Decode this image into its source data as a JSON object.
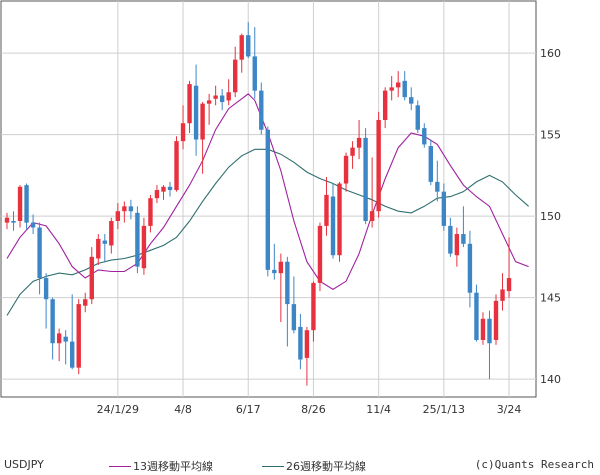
{
  "chart_data": {
    "type": "candlestick",
    "x_tick_labels": [
      "24/1/29",
      "4/8",
      "6/17",
      "8/26",
      "11/4",
      "25/1/13",
      "3/24"
    ],
    "x_tick_indices": [
      17,
      27,
      37,
      47,
      57,
      67,
      77
    ],
    "y_ticks": [
      140,
      145,
      150,
      155,
      160
    ],
    "ylim": [
      138.9,
      163.2
    ],
    "grid": true,
    "up_color": "#e8313e",
    "down_color": "#3d86c6",
    "ma13_color": "#a020a0",
    "ma26_color": "#2f6f6f",
    "ohlc": [
      [
        149.6,
        150.2,
        149.2,
        149.9
      ],
      [
        149.7,
        150.3,
        149.1,
        149.6
      ],
      [
        149.7,
        151.9,
        149.3,
        151.8
      ],
      [
        151.9,
        152.0,
        149.2,
        149.6
      ],
      [
        149.6,
        150.1,
        148.9,
        149.3
      ],
      [
        149.3,
        149.6,
        145.2,
        146.2
      ],
      [
        146.2,
        146.5,
        143.1,
        144.9
      ],
      [
        144.9,
        145.0,
        141.2,
        142.2
      ],
      [
        142.2,
        143.1,
        141.1,
        142.8
      ],
      [
        142.6,
        143.0,
        140.9,
        142.3
      ],
      [
        142.3,
        145.2,
        140.6,
        140.7
      ],
      [
        140.7,
        144.9,
        140.3,
        144.6
      ],
      [
        144.5,
        145.3,
        144.1,
        144.9
      ],
      [
        144.9,
        148.1,
        144.6,
        147.5
      ],
      [
        147.4,
        148.9,
        147.0,
        148.6
      ],
      [
        148.5,
        148.9,
        147.2,
        148.3
      ],
      [
        148.2,
        149.9,
        147.7,
        149.7
      ],
      [
        149.7,
        150.8,
        149.2,
        150.3
      ],
      [
        150.3,
        150.9,
        149.6,
        150.6
      ],
      [
        150.6,
        151.0,
        149.8,
        150.3
      ],
      [
        150.2,
        150.6,
        146.5,
        146.9
      ],
      [
        146.8,
        149.9,
        146.4,
        149.4
      ],
      [
        149.4,
        151.3,
        149.0,
        151.1
      ],
      [
        151.1,
        151.9,
        150.8,
        151.6
      ],
      [
        151.5,
        151.9,
        151.0,
        151.8
      ],
      [
        151.8,
        152.1,
        151.2,
        151.6
      ],
      [
        151.6,
        154.9,
        151.5,
        154.6
      ],
      [
        154.6,
        156.8,
        154.1,
        155.7
      ],
      [
        155.7,
        158.3,
        155.1,
        158.1
      ],
      [
        158.0,
        159.3,
        153.7,
        154.7
      ],
      [
        154.7,
        157.0,
        152.6,
        156.9
      ],
      [
        156.9,
        157.5,
        155.6,
        157.1
      ],
      [
        157.2,
        158.0,
        156.8,
        157.4
      ],
      [
        157.4,
        157.8,
        156.5,
        157.0
      ],
      [
        157.1,
        158.4,
        156.8,
        157.6
      ],
      [
        157.6,
        160.4,
        157.3,
        159.6
      ],
      [
        159.6,
        161.2,
        158.8,
        161.1
      ],
      [
        161.1,
        161.9,
        159.7,
        159.8
      ],
      [
        159.8,
        161.6,
        157.2,
        157.7
      ],
      [
        157.7,
        158.2,
        155.0,
        155.3
      ],
      [
        155.3,
        155.5,
        146.3,
        146.7
      ],
      [
        146.7,
        148.3,
        146.1,
        146.5
      ],
      [
        146.5,
        147.7,
        143.5,
        147.2
      ],
      [
        147.2,
        147.5,
        142.0,
        144.6
      ],
      [
        144.6,
        146.3,
        142.8,
        143.0
      ],
      [
        143.2,
        144.0,
        140.6,
        141.2
      ],
      [
        141.3,
        143.2,
        139.6,
        143.0
      ],
      [
        143.0,
        146.0,
        142.3,
        145.9
      ],
      [
        145.9,
        149.6,
        145.4,
        149.4
      ],
      [
        149.4,
        152.4,
        148.8,
        151.3
      ],
      [
        151.2,
        152.0,
        147.4,
        147.6
      ],
      [
        147.6,
        152.1,
        147.2,
        152.0
      ],
      [
        152.0,
        153.9,
        151.5,
        153.7
      ],
      [
        153.7,
        154.6,
        152.9,
        154.2
      ],
      [
        154.2,
        155.9,
        153.5,
        154.8
      ],
      [
        154.8,
        155.4,
        149.5,
        149.7
      ],
      [
        149.7,
        153.6,
        149.3,
        150.3
      ],
      [
        150.3,
        156.4,
        149.9,
        155.9
      ],
      [
        155.9,
        157.9,
        155.4,
        157.7
      ],
      [
        157.7,
        158.6,
        157.1,
        157.9
      ],
      [
        157.9,
        158.9,
        157.3,
        158.2
      ],
      [
        158.3,
        158.9,
        157.1,
        157.3
      ],
      [
        157.3,
        157.9,
        156.5,
        156.9
      ],
      [
        156.8,
        157.1,
        155.1,
        155.3
      ],
      [
        155.4,
        155.7,
        154.2,
        154.4
      ],
      [
        154.3,
        154.7,
        151.9,
        152.1
      ],
      [
        152.1,
        153.4,
        150.9,
        151.5
      ],
      [
        151.5,
        152.0,
        149.1,
        149.4
      ],
      [
        149.4,
        149.9,
        147.5,
        147.7
      ],
      [
        147.6,
        149.3,
        146.9,
        148.9
      ],
      [
        148.9,
        150.6,
        148.1,
        148.3
      ],
      [
        148.3,
        149.1,
        144.4,
        145.3
      ],
      [
        145.3,
        145.8,
        142.3,
        142.4
      ],
      [
        142.4,
        144.1,
        142.1,
        143.7
      ],
      [
        143.7,
        144.2,
        140.0,
        142.2
      ],
      [
        142.4,
        145.2,
        142.1,
        144.8
      ],
      [
        144.8,
        146.5,
        144.2,
        145.5
      ],
      [
        145.4,
        148.7,
        145.0,
        146.2
      ]
    ],
    "ma13": [
      [
        0,
        147.4
      ],
      [
        2,
        148.7
      ],
      [
        4,
        149.6
      ],
      [
        6,
        149.4
      ],
      [
        8,
        148.3
      ],
      [
        10,
        146.9
      ],
      [
        12,
        146.2
      ],
      [
        14,
        146.7
      ],
      [
        16,
        146.6
      ],
      [
        18,
        146.6
      ],
      [
        20,
        147.1
      ],
      [
        22,
        148.3
      ],
      [
        24,
        149.3
      ],
      [
        26,
        150.6
      ],
      [
        28,
        151.9
      ],
      [
        30,
        153.4
      ],
      [
        32,
        155.3
      ],
      [
        34,
        156.6
      ],
      [
        36,
        157.2
      ],
      [
        37,
        157.5
      ],
      [
        38,
        157.1
      ],
      [
        40,
        155.1
      ],
      [
        42,
        152.8
      ],
      [
        44,
        149.7
      ],
      [
        46,
        147.2
      ],
      [
        48,
        146.0
      ],
      [
        50,
        145.5
      ],
      [
        52,
        146.0
      ],
      [
        54,
        147.7
      ],
      [
        56,
        150.1
      ],
      [
        58,
        152.3
      ],
      [
        60,
        154.2
      ],
      [
        62,
        155.1
      ],
      [
        64,
        154.9
      ],
      [
        66,
        154.4
      ],
      [
        68,
        153.1
      ],
      [
        70,
        151.9
      ],
      [
        72,
        151.2
      ],
      [
        74,
        150.6
      ],
      [
        76,
        148.9
      ],
      [
        78,
        147.2
      ],
      [
        80,
        146.9
      ]
    ],
    "ma26": [
      [
        0,
        143.9
      ],
      [
        2,
        145.2
      ],
      [
        4,
        146.0
      ],
      [
        6,
        146.3
      ],
      [
        8,
        146.5
      ],
      [
        10,
        146.4
      ],
      [
        12,
        146.7
      ],
      [
        14,
        147.1
      ],
      [
        16,
        147.3
      ],
      [
        18,
        147.4
      ],
      [
        20,
        147.6
      ],
      [
        22,
        147.9
      ],
      [
        24,
        148.2
      ],
      [
        26,
        148.7
      ],
      [
        28,
        149.7
      ],
      [
        30,
        150.9
      ],
      [
        32,
        152.0
      ],
      [
        34,
        153.0
      ],
      [
        36,
        153.7
      ],
      [
        38,
        154.1
      ],
      [
        40,
        154.1
      ],
      [
        42,
        153.8
      ],
      [
        44,
        153.3
      ],
      [
        46,
        152.7
      ],
      [
        48,
        152.3
      ],
      [
        50,
        152.0
      ],
      [
        52,
        151.6
      ],
      [
        54,
        151.3
      ],
      [
        56,
        151.0
      ],
      [
        58,
        150.6
      ],
      [
        60,
        150.3
      ],
      [
        62,
        150.2
      ],
      [
        64,
        150.6
      ],
      [
        66,
        151.1
      ],
      [
        68,
        151.2
      ],
      [
        70,
        151.5
      ],
      [
        72,
        152.1
      ],
      [
        74,
        152.5
      ],
      [
        76,
        152.1
      ],
      [
        78,
        151.3
      ],
      [
        80,
        150.6
      ]
    ]
  },
  "legend": {
    "symbol": "USDJPY",
    "ma13_label": "13週移動平均線",
    "ma26_label": "26週移動平均線",
    "credit": "(c)Quants Research"
  }
}
